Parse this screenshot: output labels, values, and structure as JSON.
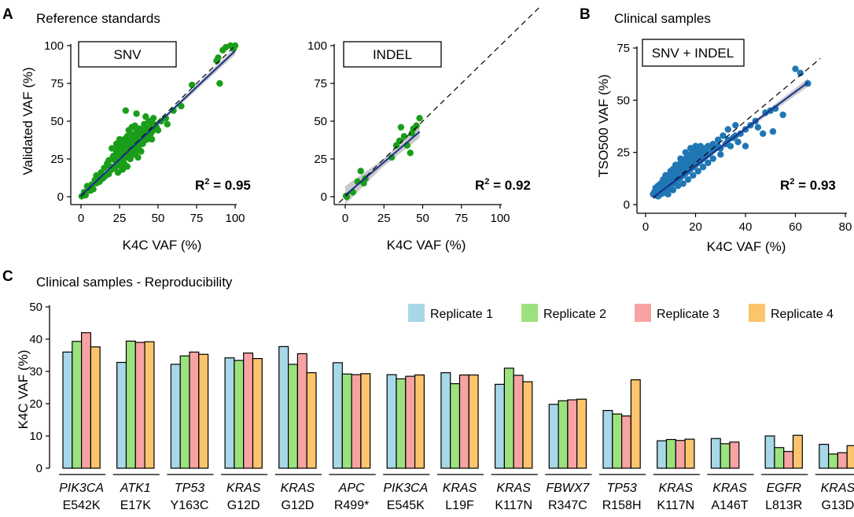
{
  "figure": {
    "panel_letters": [
      "A",
      "B",
      "C"
    ]
  },
  "colors": {
    "ref_points": "#1a9e1a",
    "clin_points": "#1f77b4",
    "fit_line": "#1a2f8c",
    "ci_band": "#bfbfbf",
    "rep1": "#a7d7e8",
    "rep2": "#9be27e",
    "rep3": "#f7a3a3",
    "rep4": "#fbc46d"
  },
  "chart_data": [
    {
      "type": "scatter",
      "id": "snv",
      "title": "Reference standards",
      "box_label": "SNV",
      "r2_text": "R",
      "r2_sup": "2",
      "r2_value": " = 0.95",
      "xlabel": "K4C VAF (%)",
      "ylabel": "Validated VAF (%)",
      "xlim": [
        0,
        100
      ],
      "ylim": [
        0,
        100
      ],
      "xticks": [
        0,
        25,
        50,
        75,
        100
      ],
      "yticks": [
        0,
        25,
        50,
        75,
        100
      ],
      "fit": {
        "x": [
          0,
          100
        ],
        "y": [
          0.8,
          96.5
        ]
      },
      "ci": {
        "x": [
          0,
          50,
          100
        ],
        "upper": [
          3.0,
          49.2,
          99.0
        ],
        "lower": [
          -1.4,
          47.2,
          94.0
        ]
      },
      "points": [
        [
          0.5,
          0.3
        ],
        [
          2,
          3
        ],
        [
          3,
          1
        ],
        [
          5,
          6
        ],
        [
          7,
          8
        ],
        [
          8,
          5
        ],
        [
          9,
          11
        ],
        [
          10,
          9
        ],
        [
          11,
          13
        ],
        [
          12,
          10
        ],
        [
          13,
          16
        ],
        [
          14,
          12
        ],
        [
          15,
          19
        ],
        [
          16,
          14
        ],
        [
          17,
          22
        ],
        [
          18,
          15
        ],
        [
          19,
          20
        ],
        [
          20,
          18
        ],
        [
          20,
          25
        ],
        [
          21,
          27
        ],
        [
          22,
          19
        ],
        [
          22,
          24
        ],
        [
          23,
          30
        ],
        [
          23,
          21
        ],
        [
          24,
          26
        ],
        [
          24,
          33
        ],
        [
          25,
          23
        ],
        [
          25,
          28
        ],
        [
          26,
          31
        ],
        [
          26,
          36
        ],
        [
          27,
          25
        ],
        [
          27,
          29
        ],
        [
          28,
          34
        ],
        [
          28,
          38
        ],
        [
          28,
          22
        ],
        [
          29,
          27
        ],
        [
          29,
          31
        ],
        [
          30,
          35
        ],
        [
          30,
          40
        ],
        [
          30,
          26
        ],
        [
          31,
          29
        ],
        [
          31,
          33
        ],
        [
          31,
          37
        ],
        [
          32,
          28
        ],
        [
          32,
          31
        ],
        [
          32,
          42
        ],
        [
          33,
          30
        ],
        [
          33,
          35
        ],
        [
          33,
          39
        ],
        [
          34,
          32
        ],
        [
          34,
          36
        ],
        [
          34,
          28
        ],
        [
          35,
          34
        ],
        [
          35,
          38
        ],
        [
          35,
          41
        ],
        [
          36,
          30
        ],
        [
          36,
          35
        ],
        [
          36,
          44
        ],
        [
          37,
          33
        ],
        [
          37,
          37
        ],
        [
          38,
          36
        ],
        [
          38,
          40
        ],
        [
          38,
          31
        ],
        [
          39,
          38
        ],
        [
          39,
          42
        ],
        [
          40,
          35
        ],
        [
          40,
          39
        ],
        [
          40,
          44
        ],
        [
          41,
          37
        ],
        [
          41,
          41
        ],
        [
          42,
          40
        ],
        [
          42,
          46
        ],
        [
          43,
          38
        ],
        [
          43,
          42
        ],
        [
          44,
          44
        ],
        [
          45,
          41
        ],
        [
          45,
          46
        ],
        [
          46,
          43
        ],
        [
          47,
          48
        ],
        [
          48,
          45
        ],
        [
          49,
          46
        ],
        [
          50,
          44
        ],
        [
          29,
          57
        ],
        [
          36,
          55
        ],
        [
          42,
          53
        ],
        [
          52,
          50
        ],
        [
          56,
          48
        ],
        [
          20,
          32
        ],
        [
          18,
          24
        ],
        [
          25,
          38
        ],
        [
          33,
          46
        ],
        [
          27,
          18
        ],
        [
          30,
          20
        ],
        [
          37,
          26
        ],
        [
          44,
          50
        ],
        [
          47,
          52
        ],
        [
          24,
          16
        ],
        [
          32,
          25
        ],
        [
          39,
          30
        ],
        [
          41,
          48
        ],
        [
          35,
          47
        ],
        [
          15,
          13
        ],
        [
          10,
          14
        ],
        [
          6,
          4
        ],
        [
          4,
          7
        ],
        [
          26,
          20
        ],
        [
          38,
          45
        ],
        [
          46,
          38
        ],
        [
          31,
          44
        ],
        [
          23,
          35
        ],
        [
          72,
          74
        ],
        [
          88,
          90
        ],
        [
          89,
          92
        ],
        [
          90,
          75
        ],
        [
          92,
          97
        ],
        [
          94,
          99
        ],
        [
          97,
          100
        ],
        [
          99,
          98
        ],
        [
          100,
          100
        ],
        [
          60,
          57
        ],
        [
          55,
          52
        ],
        [
          65,
          60
        ]
      ]
    },
    {
      "type": "scatter",
      "id": "indel",
      "box_label": "INDEL",
      "r2_text": "R",
      "r2_sup": "2",
      "r2_value": " = 0.92",
      "xlabel": "K4C VAF (%)",
      "ylabel": "",
      "xlim": [
        0,
        100
      ],
      "ylim": [
        0,
        100
      ],
      "xticks": [
        0,
        25,
        50,
        75,
        100
      ],
      "yticks": [
        0,
        25,
        50,
        75,
        100
      ],
      "fit": {
        "x": [
          0,
          48
        ],
        "y": [
          1,
          43
        ]
      },
      "ci": {
        "x": [
          0,
          24,
          48
        ],
        "upper": [
          7,
          24.5,
          47
        ],
        "lower": [
          -5,
          19.5,
          39
        ]
      },
      "points": [
        [
          0.5,
          0.5
        ],
        [
          1,
          0
        ],
        [
          5,
          3
        ],
        [
          8,
          10
        ],
        [
          10,
          17
        ],
        [
          12,
          9
        ],
        [
          13,
          12
        ],
        [
          30,
          26
        ],
        [
          33,
          34
        ],
        [
          35,
          37
        ],
        [
          36,
          46
        ],
        [
          38,
          40
        ],
        [
          40,
          34
        ],
        [
          42,
          29
        ],
        [
          43,
          42
        ],
        [
          44,
          45
        ],
        [
          46,
          47
        ],
        [
          48,
          52
        ]
      ]
    },
    {
      "type": "scatter",
      "id": "clinical",
      "title": "Clinical samples",
      "box_label": "SNV + INDEL",
      "r2_text": "R",
      "r2_sup": "2",
      "r2_value": " = 0.93",
      "xlabel": "K4C VAF (%)",
      "ylabel": "TSO500 VAF (%)",
      "xlim": [
        0,
        80
      ],
      "ylim": [
        0,
        75
      ],
      "xticks": [
        0,
        20,
        40,
        60,
        80
      ],
      "yticks": [
        0,
        25,
        50,
        75
      ],
      "fit": {
        "x": [
          3,
          65
        ],
        "y": [
          3.5,
          58.5
        ]
      },
      "ci": {
        "x": [
          3,
          20,
          40,
          65
        ],
        "upper": [
          4.2,
          18.8,
          37.0,
          60.5
        ],
        "lower": [
          2.8,
          18.0,
          35.4,
          56.5
        ]
      },
      "points": [
        [
          3,
          5
        ],
        [
          3.5,
          6
        ],
        [
          4,
          4.5
        ],
        [
          4,
          7
        ],
        [
          4.5,
          5.5
        ],
        [
          5,
          6
        ],
        [
          5,
          8
        ],
        [
          5.5,
          4.5
        ],
        [
          6,
          7
        ],
        [
          6,
          9
        ],
        [
          6.5,
          5.5
        ],
        [
          7,
          8
        ],
        [
          7,
          10
        ],
        [
          7.5,
          6
        ],
        [
          8,
          7
        ],
        [
          8,
          11
        ],
        [
          8.5,
          9
        ],
        [
          9,
          8
        ],
        [
          9,
          12
        ],
        [
          9.5,
          10
        ],
        [
          10,
          9
        ],
        [
          10,
          13
        ],
        [
          10.5,
          11
        ],
        [
          11,
          10
        ],
        [
          11,
          14
        ],
        [
          11.5,
          12
        ],
        [
          12,
          11
        ],
        [
          12,
          15
        ],
        [
          12.5,
          13
        ],
        [
          13,
          12
        ],
        [
          13,
          16
        ],
        [
          13.5,
          14
        ],
        [
          14,
          13
        ],
        [
          14,
          17
        ],
        [
          14.5,
          15
        ],
        [
          15,
          14
        ],
        [
          15,
          18
        ],
        [
          15.5,
          16
        ],
        [
          16,
          15
        ],
        [
          16,
          19
        ],
        [
          16.5,
          17
        ],
        [
          17,
          16
        ],
        [
          17,
          20
        ],
        [
          17.5,
          18
        ],
        [
          18,
          17
        ],
        [
          18,
          21
        ],
        [
          18.5,
          19
        ],
        [
          19,
          18
        ],
        [
          19,
          22
        ],
        [
          19.5,
          20
        ],
        [
          20,
          19
        ],
        [
          20,
          23
        ],
        [
          20.5,
          21
        ],
        [
          21,
          20
        ],
        [
          21,
          24
        ],
        [
          21.5,
          22
        ],
        [
          22,
          21
        ],
        [
          22,
          25
        ],
        [
          22.5,
          23
        ],
        [
          23,
          22
        ],
        [
          23,
          26
        ],
        [
          24,
          23
        ],
        [
          24,
          27
        ],
        [
          25,
          24
        ],
        [
          25,
          28
        ],
        [
          26,
          25
        ],
        [
          27,
          26
        ],
        [
          28,
          27
        ],
        [
          29,
          28
        ],
        [
          30,
          27
        ],
        [
          8,
          14
        ],
        [
          10,
          16
        ],
        [
          12,
          19
        ],
        [
          14,
          22
        ],
        [
          16,
          25
        ],
        [
          18,
          27
        ],
        [
          20,
          28
        ],
        [
          22,
          28
        ],
        [
          9,
          5
        ],
        [
          11,
          7
        ],
        [
          13,
          9
        ],
        [
          15,
          10
        ],
        [
          17,
          12
        ],
        [
          19,
          14
        ],
        [
          21,
          16
        ],
        [
          23,
          18
        ],
        [
          25,
          20
        ],
        [
          27,
          22
        ],
        [
          30,
          24
        ],
        [
          32,
          29
        ],
        [
          33,
          31
        ],
        [
          34,
          28
        ],
        [
          35,
          32
        ],
        [
          36,
          33
        ],
        [
          37,
          30
        ],
        [
          38,
          34
        ],
        [
          40,
          36
        ],
        [
          42,
          38
        ],
        [
          44,
          40
        ],
        [
          45,
          37
        ],
        [
          48,
          44
        ],
        [
          50,
          45
        ],
        [
          52,
          46
        ],
        [
          40,
          28
        ],
        [
          47,
          34
        ],
        [
          55,
          43
        ],
        [
          60,
          65
        ],
        [
          62,
          63
        ],
        [
          65,
          58
        ],
        [
          51,
          35
        ],
        [
          36,
          38
        ],
        [
          33,
          36
        ],
        [
          31,
          33
        ],
        [
          29,
          31
        ],
        [
          27,
          29
        ],
        [
          26,
          28
        ],
        [
          24,
          26
        ],
        [
          6,
          10
        ],
        [
          7,
          12
        ],
        [
          5,
          9
        ],
        [
          4,
          8
        ],
        [
          3.5,
          5
        ],
        [
          10,
          15
        ],
        [
          11,
          17
        ],
        [
          12,
          17
        ],
        [
          13,
          18
        ],
        [
          14,
          20
        ],
        [
          15,
          21
        ],
        [
          16,
          22
        ],
        [
          17,
          23
        ],
        [
          18,
          24
        ],
        [
          19,
          25
        ],
        [
          20,
          26
        ],
        [
          21,
          27
        ],
        [
          5,
          4
        ],
        [
          6,
          5
        ],
        [
          7,
          5.5
        ],
        [
          8,
          6
        ],
        [
          9,
          7
        ],
        [
          10,
          8
        ]
      ]
    },
    {
      "type": "bar",
      "id": "reproducibility",
      "title": "Clinical samples - Reproducibility",
      "ylabel": "K4C VAF (%)",
      "ylim": [
        0,
        50
      ],
      "yticks": [
        0,
        10,
        20,
        30,
        40,
        50
      ],
      "legend_position": "top-right",
      "series_names": [
        "Replicate 1",
        "Replicate 2",
        "Replicate 3",
        "Replicate 4"
      ],
      "categories": [
        {
          "gene": "PIK3CA",
          "mutation": "E542K",
          "values": [
            36,
            39.3,
            42,
            37.6
          ]
        },
        {
          "gene": "ATK1",
          "mutation": "E17K",
          "values": [
            32.8,
            39.4,
            39,
            39.2
          ]
        },
        {
          "gene": "TP53",
          "mutation": "Y163C",
          "values": [
            32.2,
            34.8,
            36,
            35.3
          ]
        },
        {
          "gene": "KRAS",
          "mutation": "G12D",
          "values": [
            34.2,
            33.4,
            35.7,
            34
          ]
        },
        {
          "gene": "KRAS",
          "mutation": "G12D",
          "values": [
            37.7,
            32.2,
            35.5,
            29.6
          ]
        },
        {
          "gene": "APC",
          "mutation": "R499*",
          "values": [
            32.7,
            29.2,
            29,
            29.3
          ]
        },
        {
          "gene": "PIK3CA",
          "mutation": "E545K",
          "values": [
            29,
            27.7,
            28.5,
            28.9
          ]
        },
        {
          "gene": "KRAS",
          "mutation": "L19F",
          "values": [
            29.6,
            26.2,
            28.9,
            28.9
          ]
        },
        {
          "gene": "KRAS",
          "mutation": "K117N",
          "values": [
            26,
            31,
            28.8,
            26.8
          ]
        },
        {
          "gene": "FBWX7",
          "mutation": "R347C",
          "values": [
            19.8,
            20.9,
            21.2,
            21.4
          ]
        },
        {
          "gene": "TP53",
          "mutation": "R158H",
          "values": [
            17.9,
            16.8,
            16.2,
            27.4
          ]
        },
        {
          "gene": "KRAS",
          "mutation": "K117N",
          "values": [
            8.5,
            8.9,
            8.6,
            9
          ]
        },
        {
          "gene": "KRAS",
          "mutation": "A146T",
          "values": [
            9.2,
            7.6,
            8.1,
            0
          ]
        },
        {
          "gene": "EGFR",
          "mutation": "L813R",
          "values": [
            10,
            6.4,
            5.2,
            10.2
          ]
        },
        {
          "gene": "KRAS",
          "mutation": "G13D",
          "values": [
            7.4,
            4.4,
            4.8,
            7
          ]
        }
      ]
    }
  ]
}
